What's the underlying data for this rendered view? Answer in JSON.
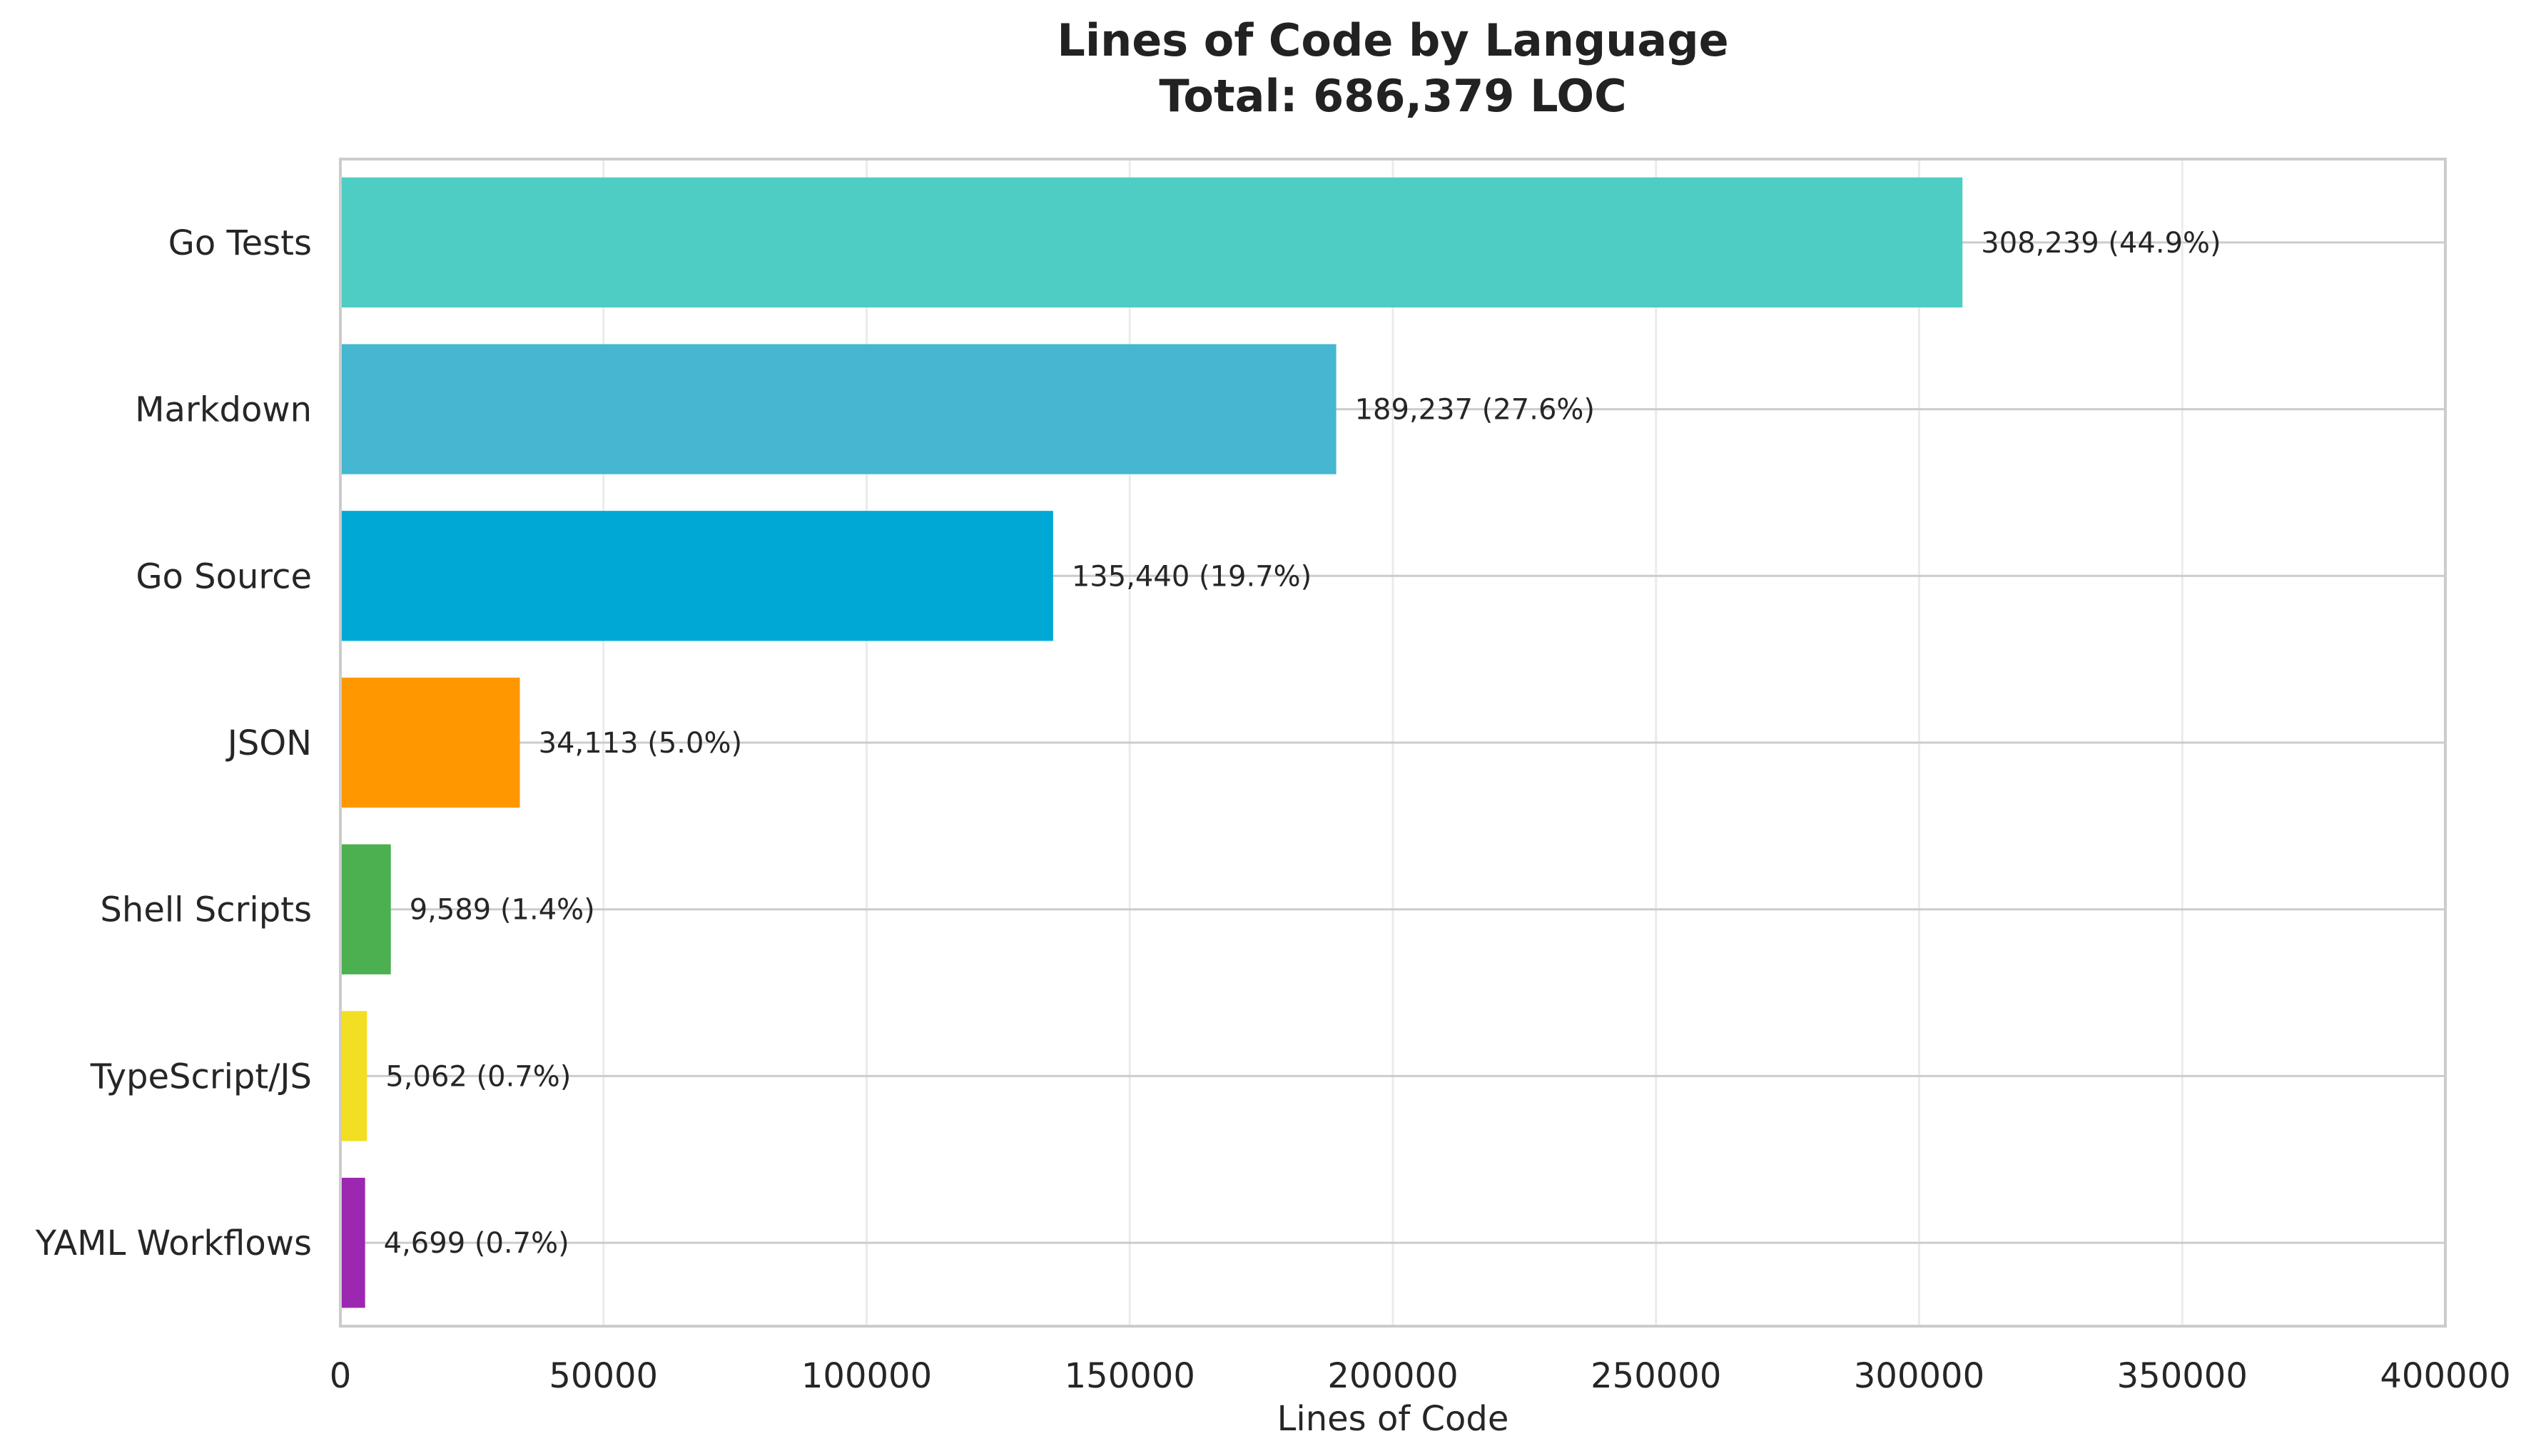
{
  "chart_data": {
    "type": "bar",
    "orientation": "horizontal",
    "title": "Lines of Code by Language",
    "subtitle": "Total: 686,379 LOC",
    "xlabel": "Lines of Code",
    "ylabel": "",
    "xlim": [
      0,
      400000
    ],
    "x_ticks": [
      0,
      50000,
      100000,
      150000,
      200000,
      250000,
      300000,
      350000,
      400000
    ],
    "x_tick_labels": [
      "0",
      "50000",
      "100000",
      "150000",
      "200000",
      "250000",
      "300000",
      "350000",
      "400000"
    ],
    "grid": true,
    "legend": "none",
    "categories": [
      "Go Tests",
      "Markdown",
      "Go Source",
      "JSON",
      "Shell Scripts",
      "TypeScript/JS",
      "YAML Workflows"
    ],
    "values": [
      308239,
      189237,
      135440,
      34113,
      9589,
      5062,
      4699
    ],
    "data_labels": [
      "308,239 (44.9%)",
      "189,237 (27.6%)",
      "135,440 (19.7%)",
      "34,113 (5.0%)",
      "9,589 (1.4%)",
      "5,062 (0.7%)",
      "4,699 (0.7%)"
    ],
    "colors": [
      "#4ECDC4",
      "#45B7D1",
      "#00A8D6",
      "#FF9800",
      "#4CAF50",
      "#F2DE22",
      "#9C27B0"
    ]
  }
}
